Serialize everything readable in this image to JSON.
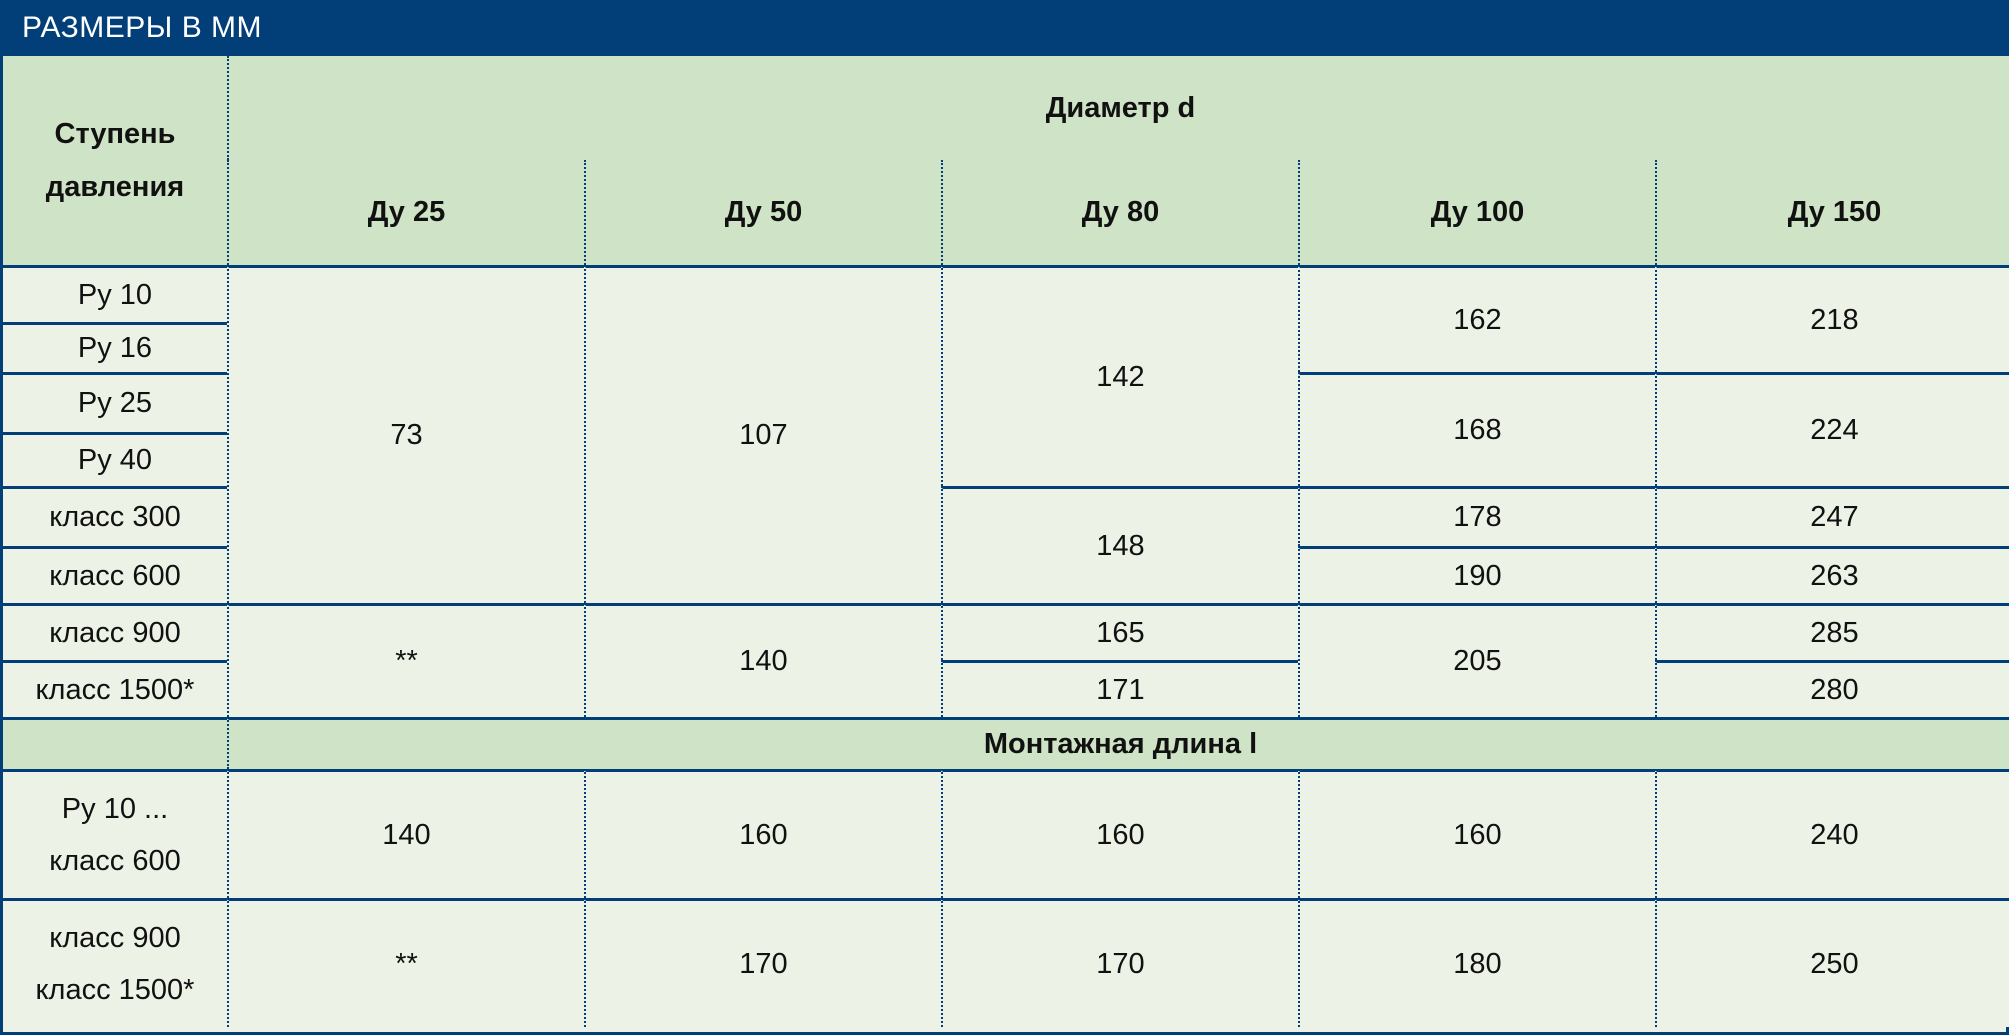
{
  "header": {
    "title": "РАЗМЕРЫ В ММ"
  },
  "table": {
    "pressure_header": "Ступень давления",
    "diameter_header": "Диаметр d",
    "diameters": [
      "Ду 25",
      "Ду 50",
      "Ду 80",
      "Ду 100",
      "Ду 150"
    ],
    "rows": [
      "Ру 10",
      "Ру 16",
      "Ру 25",
      "Ру 40",
      "класс 300",
      "класс 600",
      "класс 900",
      "класс 1500*"
    ],
    "d25": {
      "a": "73",
      "b": "**"
    },
    "d50": {
      "a": "107",
      "b": "140"
    },
    "d80": {
      "a": "142",
      "b": "148",
      "c": "165",
      "d": "171"
    },
    "d100": {
      "a": "162",
      "b": "168",
      "c": "178",
      "d": "190",
      "e": "205"
    },
    "d150": {
      "a": "218",
      "b": "224",
      "c": "247",
      "d": "263",
      "e": "285",
      "f": "280"
    },
    "length_header": "Монтажная длина l",
    "length_rows": [
      {
        "label": "Ру 10 ...\nкласс 600",
        "values": [
          "140",
          "160",
          "160",
          "160",
          "240"
        ]
      },
      {
        "label": "класс 900\nкласс 1500*",
        "values": [
          "**",
          "170",
          "170",
          "180",
          "250"
        ]
      }
    ]
  }
}
